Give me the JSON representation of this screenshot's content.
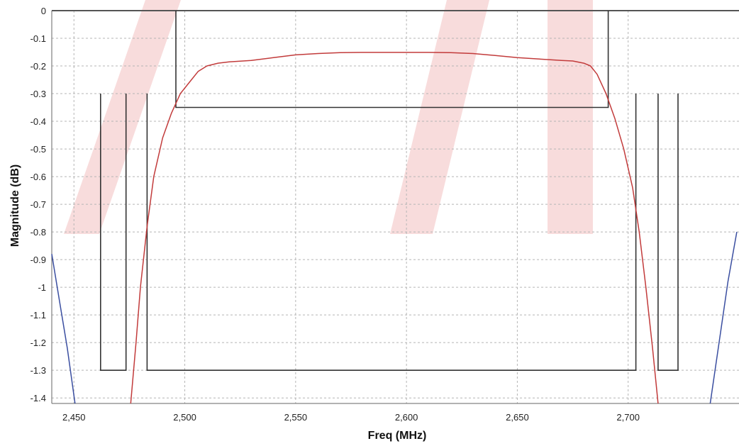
{
  "chart_data": {
    "type": "line",
    "title": "",
    "xlabel": "Freq (MHz)",
    "ylabel": "Magnitude (dB)",
    "xlim": [
      2440,
      2750
    ],
    "ylim": [
      -1.42,
      0
    ],
    "x_ticks": [
      {
        "value": 2450,
        "label": "2,450"
      },
      {
        "value": 2500,
        "label": "2,500"
      },
      {
        "value": 2550,
        "label": "2,550"
      },
      {
        "value": 2600,
        "label": "2,600"
      },
      {
        "value": 2650,
        "label": "2,650"
      },
      {
        "value": 2700,
        "label": "2,700"
      }
    ],
    "y_ticks": [
      {
        "value": 0,
        "label": "0"
      },
      {
        "value": -0.1,
        "label": "-0.1"
      },
      {
        "value": -0.2,
        "label": "-0.2"
      },
      {
        "value": -0.3,
        "label": "-0.3"
      },
      {
        "value": -0.4,
        "label": "-0.4"
      },
      {
        "value": -0.5,
        "label": "-0.5"
      },
      {
        "value": -0.6,
        "label": "-0.6"
      },
      {
        "value": -0.7,
        "label": "-0.7"
      },
      {
        "value": -0.8,
        "label": "-0.8"
      },
      {
        "value": -0.9,
        "label": "-0.9"
      },
      {
        "value": -1.0,
        "label": "-1"
      },
      {
        "value": -1.1,
        "label": "-1.1"
      },
      {
        "value": -1.2,
        "label": "-1.2"
      },
      {
        "value": -1.3,
        "label": "-1.3"
      },
      {
        "value": -1.4,
        "label": "-1.4"
      }
    ],
    "grid": true,
    "legend": "none",
    "series": [
      {
        "color": "#c23b3b",
        "x": [
          2475.6,
          2478,
          2480,
          2483,
          2486,
          2490,
          2494,
          2498,
          2502,
          2506,
          2510,
          2515,
          2520,
          2530,
          2540,
          2550,
          2560,
          2570,
          2580,
          2590,
          2600,
          2610,
          2620,
          2630,
          2640,
          2650,
          2660,
          2670,
          2675,
          2680,
          2683,
          2686,
          2690,
          2694,
          2698,
          2702,
          2705,
          2708,
          2711,
          2713.5
        ],
        "y": [
          -1.42,
          -1.2,
          -1.0,
          -0.78,
          -0.6,
          -0.46,
          -0.37,
          -0.3,
          -0.26,
          -0.22,
          -0.2,
          -0.19,
          -0.185,
          -0.18,
          -0.17,
          -0.16,
          -0.155,
          -0.152,
          -0.151,
          -0.151,
          -0.151,
          -0.151,
          -0.152,
          -0.155,
          -0.162,
          -0.17,
          -0.175,
          -0.18,
          -0.182,
          -0.19,
          -0.2,
          -0.23,
          -0.3,
          -0.39,
          -0.5,
          -0.64,
          -0.8,
          -1.0,
          -1.22,
          -1.42
        ]
      },
      {
        "color": "#3a4ea0",
        "x": [
          2440,
          2443.5,
          2447,
          2450.5
        ],
        "y": [
          -0.88,
          -1.05,
          -1.22,
          -1.42
        ]
      },
      {
        "color": "#3a4ea0",
        "x": [
          2737,
          2741,
          2745,
          2749
        ],
        "y": [
          -1.42,
          -1.2,
          -0.98,
          -0.8
        ]
      }
    ],
    "masks": [
      {
        "color": "#333333",
        "x": [
          2496,
          2496,
          2691,
          2691
        ],
        "y": [
          0,
          -0.35,
          -0.35,
          0
        ]
      },
      {
        "color": "#333333",
        "x": [
          2462,
          2462,
          2473.5,
          2473.5
        ],
        "y": [
          -0.3,
          -1.3,
          -1.3,
          -0.3
        ]
      },
      {
        "color": "#333333",
        "x": [
          2483,
          2483,
          2703.5,
          2703.5
        ],
        "y": [
          -0.3,
          -1.3,
          -1.3,
          -0.3
        ]
      },
      {
        "color": "#333333",
        "x": [
          2713.5,
          2713.5,
          2722.5,
          2722.5
        ],
        "y": [
          -0.3,
          -1.3,
          -1.3,
          -0.3
        ]
      }
    ]
  }
}
